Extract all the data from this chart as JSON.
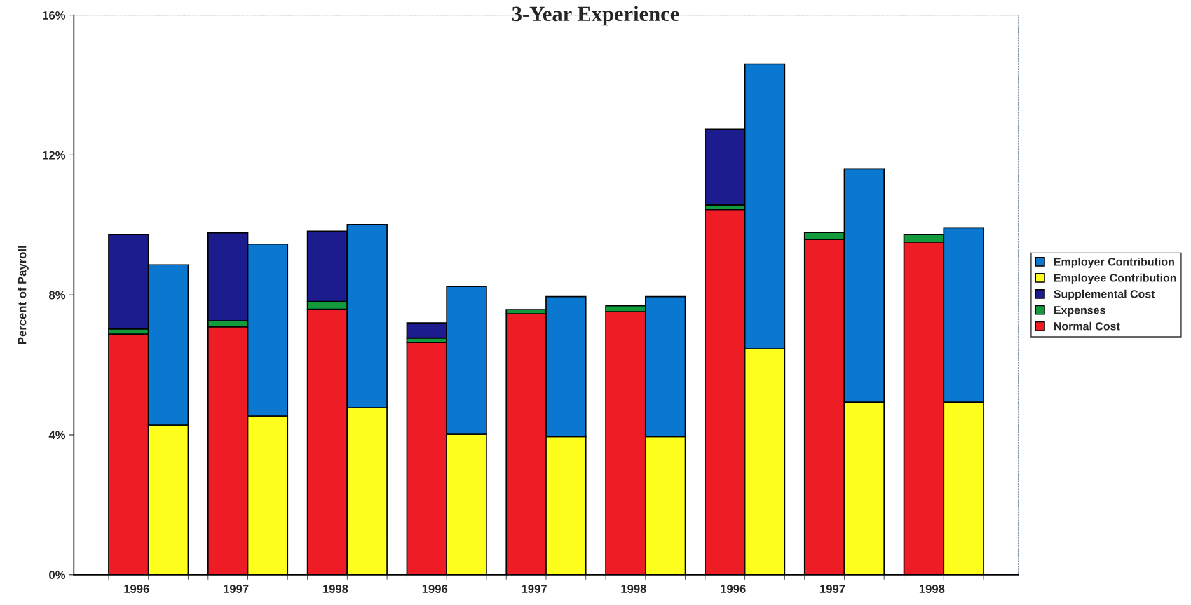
{
  "chart_data": {
    "type": "bar",
    "title": "3-Year Experience",
    "ylabel": "Percent of Payroll",
    "stacked": true,
    "categories": [
      "1996",
      null,
      "1997",
      null,
      "1998",
      null,
      "1996",
      null,
      "1997",
      null,
      "1998",
      null,
      "1996",
      null,
      "1997",
      null,
      "1998",
      null
    ],
    "series": [
      {
        "name": "Normal Cost",
        "color": "#ee1c25",
        "values": [
          6.88,
          null,
          7.09,
          null,
          7.59,
          null,
          6.64,
          null,
          7.46,
          null,
          7.52,
          null,
          10.44,
          null,
          9.58,
          null,
          9.51,
          null
        ]
      },
      {
        "name": "Expenses",
        "color": "#129a3c",
        "values": [
          0.15,
          null,
          0.17,
          null,
          0.22,
          null,
          0.13,
          null,
          0.12,
          null,
          0.17,
          null,
          0.13,
          null,
          0.2,
          null,
          0.22,
          null
        ]
      },
      {
        "name": "Supplemental Cost",
        "color": "#1c1c8e",
        "values": [
          2.7,
          null,
          2.51,
          null,
          2.01,
          null,
          0.43,
          null,
          null,
          null,
          null,
          null,
          2.17,
          null,
          null,
          null,
          null,
          null
        ]
      },
      {
        "name": "Employee Contribution",
        "color": "#ffff1e",
        "values": [
          null,
          4.28,
          null,
          4.54,
          null,
          4.78,
          null,
          4.02,
          null,
          3.95,
          null,
          3.95,
          null,
          6.46,
          null,
          4.94,
          null,
          4.94
        ]
      },
      {
        "name": "Employer Contribution",
        "color": "#0a78d0",
        "values": [
          null,
          4.58,
          null,
          4.91,
          null,
          5.23,
          null,
          4.22,
          null,
          4.0,
          null,
          4.0,
          null,
          8.14,
          null,
          6.66,
          null,
          4.98
        ]
      }
    ],
    "ylim": [
      0,
      16
    ],
    "yticks": [
      {
        "value": 0,
        "label": "0%"
      },
      {
        "value": 4,
        "label": "4%"
      },
      {
        "value": 8,
        "label": "8%"
      },
      {
        "value": 12,
        "label": "12%"
      },
      {
        "value": 16,
        "label": "16%"
      }
    ],
    "grid": false,
    "legend": "right"
  }
}
